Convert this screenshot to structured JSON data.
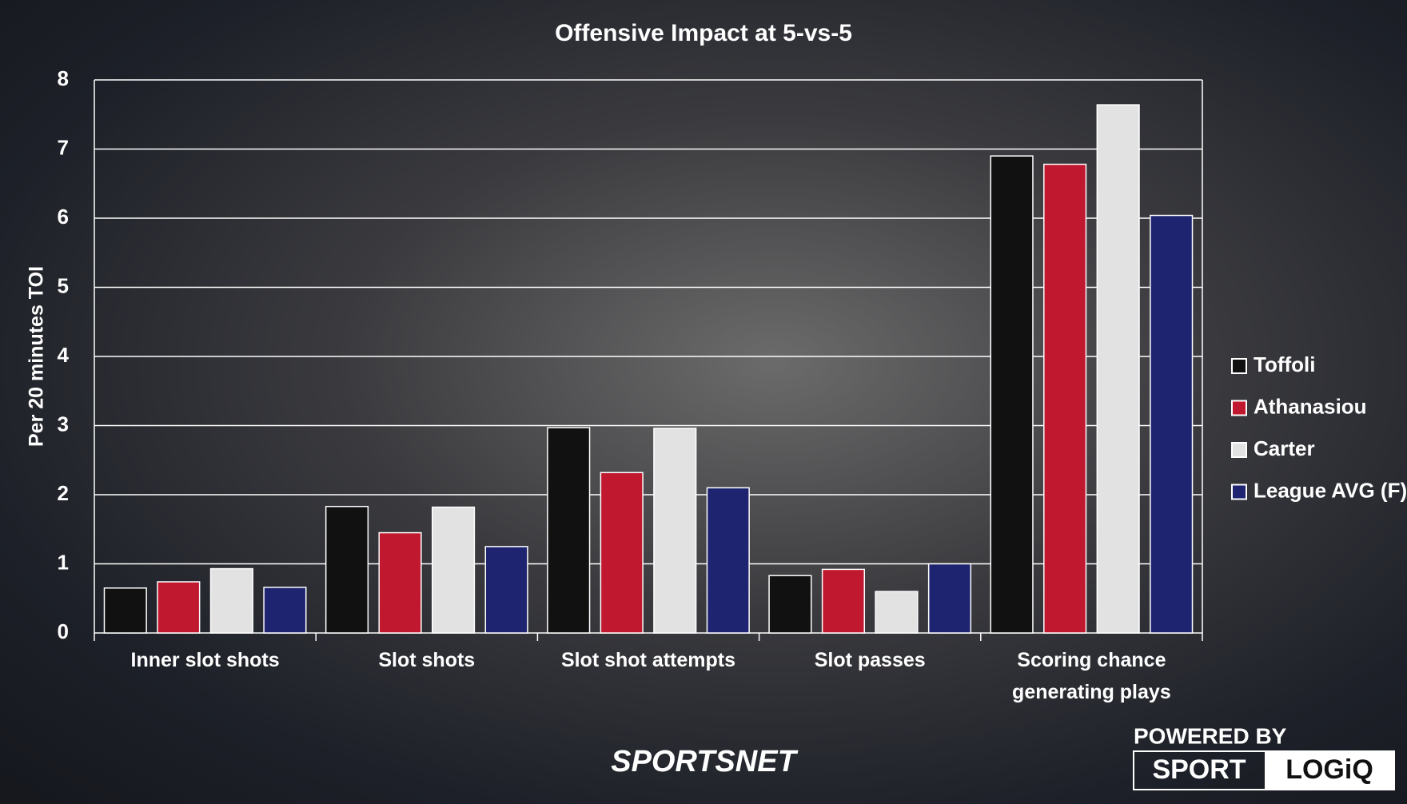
{
  "chart_data": {
    "type": "bar",
    "title": "Offensive Impact at 5-vs-5",
    "y_label": "Per 20 minutes TOI",
    "categories": [
      "Inner slot shots",
      "Slot shots",
      "Slot shot attempts",
      "Slot passes",
      "Scoring chance generating plays"
    ],
    "series": [
      {
        "name": "Toffoli",
        "color": "#111111",
        "values": [
          0.65,
          1.83,
          2.97,
          0.83,
          6.9
        ]
      },
      {
        "name": "Athanasiou",
        "color": "#c0182e",
        "values": [
          0.74,
          1.45,
          2.32,
          0.92,
          6.78
        ]
      },
      {
        "name": "Carter",
        "color": "#e2e2e2",
        "values": [
          0.93,
          1.82,
          2.96,
          0.6,
          7.64
        ]
      },
      {
        "name": "League AVG (F)",
        "color": "#1f2470",
        "values": [
          0.66,
          1.25,
          2.1,
          1.0,
          6.04
        ]
      }
    ],
    "ylim": [
      0,
      8
    ],
    "yticks": [
      0,
      1,
      2,
      3,
      4,
      5,
      6,
      7,
      8
    ],
    "grid": true,
    "legend": "right"
  },
  "branding": {
    "broadcaster": "SPORTSNET",
    "powered_by": "POWERED BY",
    "logo_left": "SPORT",
    "logo_right": "LOGiQ"
  }
}
